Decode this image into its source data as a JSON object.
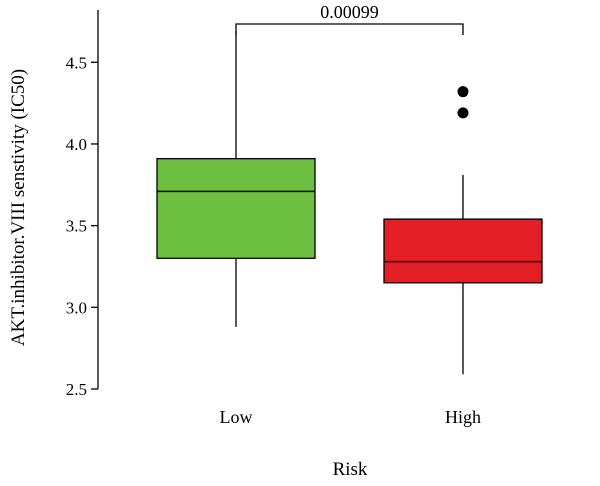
{
  "chart_data": {
    "type": "box",
    "ylabel": "AKT.inhibitor.VIII senstivity (IC50)",
    "xlabel": "Risk",
    "ylim": [
      2.5,
      4.82
    ],
    "yticks": [
      2.5,
      3.0,
      3.5,
      4.0,
      4.5
    ],
    "ytick_labels": [
      "2.5",
      "3.0",
      "3.5",
      "4.0",
      "4.5"
    ],
    "groups": [
      {
        "name": "Low",
        "color": "#6cbf3f",
        "min": 2.88,
        "q1": 3.3,
        "median": 3.71,
        "q3": 3.91,
        "max": 4.69,
        "outliers": []
      },
      {
        "name": "High",
        "color": "#e31e24",
        "min": 2.59,
        "q1": 3.15,
        "median": 3.28,
        "q3": 3.54,
        "max": 3.81,
        "outliers": [
          4.19,
          4.32
        ]
      }
    ],
    "annotation": {
      "text": "0.00099",
      "between": [
        "Low",
        "High"
      ]
    }
  }
}
